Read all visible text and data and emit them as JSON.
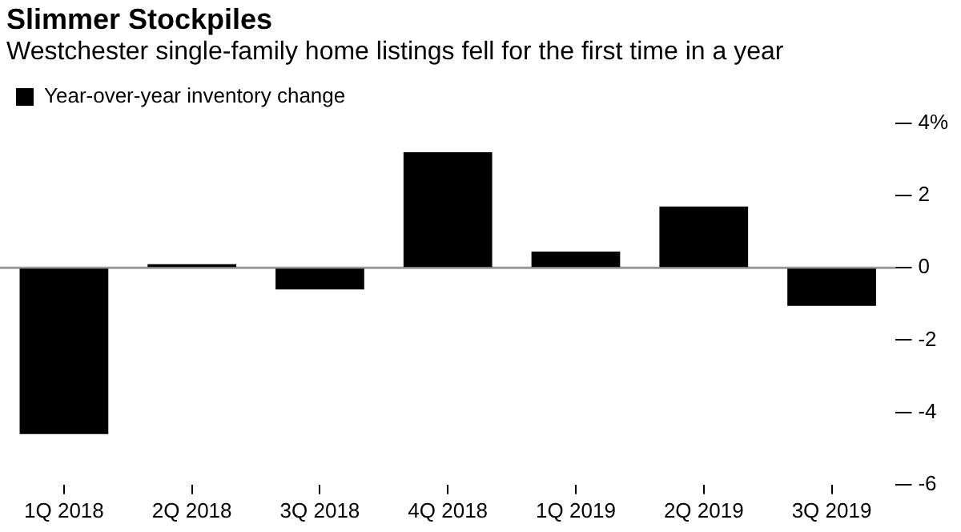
{
  "chart_data": {
    "type": "bar",
    "title": "Slimmer Stockpiles",
    "subtitle": "Westchester single-family home listings fell for the first time in a year",
    "categories": [
      "1Q 2018",
      "2Q 2018",
      "3Q 2018",
      "4Q 2018",
      "1Q 2019",
      "2Q 2019",
      "3Q 2019"
    ],
    "series": [
      {
        "name": "Year-over-year inventory change",
        "color": "#000000",
        "values": [
          -4.6,
          0.1,
          -0.6,
          3.2,
          0.45,
          1.7,
          -1.05
        ]
      }
    ],
    "ylim": [
      -6,
      4
    ],
    "ref_lines": [
      {
        "axis": "y",
        "value": 0,
        "color": "#999999"
      }
    ],
    "yticks": [
      {
        "value": 4,
        "label": "4%"
      },
      2,
      0,
      -2,
      -4,
      -6
    ],
    "legend": "top left"
  }
}
